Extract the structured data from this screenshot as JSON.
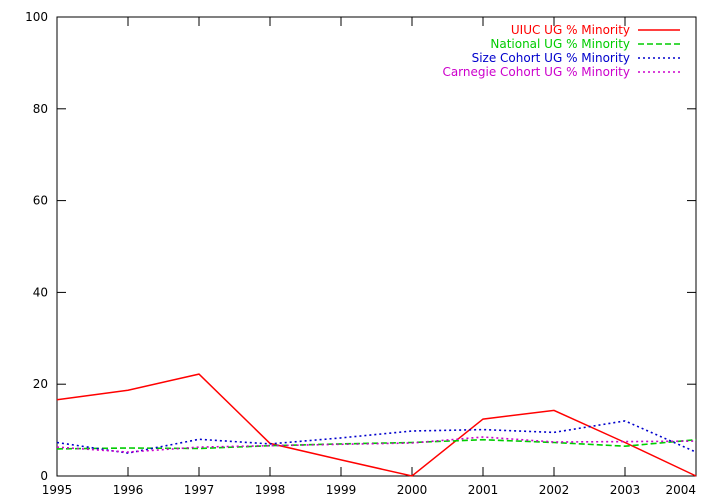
{
  "chart_data": {
    "type": "line",
    "title": "",
    "xlabel": "",
    "ylabel": "",
    "xlim": [
      1995,
      2004
    ],
    "ylim": [
      0,
      100
    ],
    "x_ticks": [
      1995,
      1996,
      1997,
      1998,
      1999,
      2000,
      2001,
      2002,
      2003,
      2004
    ],
    "y_ticks": [
      0,
      20,
      40,
      60,
      80,
      100
    ],
    "grid": false,
    "legend_position": "top-right",
    "x": [
      1995,
      1996,
      1997,
      1998,
      1999,
      2000,
      2001,
      2002,
      2003,
      2004
    ],
    "series": [
      {
        "name": "UIUC UG % Minority",
        "color": "#ff0000",
        "style": "solid",
        "values": [
          16.6,
          18.7,
          22.2,
          7.1,
          3.5,
          0.0,
          12.4,
          14.3,
          7.3,
          0.0
        ]
      },
      {
        "name": "National UG % Minority",
        "color": "#00cc00",
        "style": "dashed",
        "values": [
          5.9,
          6.1,
          6.0,
          6.6,
          7.0,
          7.3,
          7.9,
          7.3,
          6.5,
          7.9
        ]
      },
      {
        "name": "Size Cohort UG % Minority",
        "color": "#0000cc",
        "style": "dotted",
        "values": [
          7.3,
          5.0,
          8.0,
          7.0,
          8.3,
          9.8,
          10.1,
          9.5,
          12.0,
          5.2
        ]
      },
      {
        "name": "Carnegie Cohort UG % Minority",
        "color": "#cc00cc",
        "style": "dotted",
        "values": [
          6.3,
          5.2,
          6.3,
          6.6,
          6.9,
          7.2,
          8.5,
          7.4,
          7.5,
          7.6
        ]
      }
    ]
  }
}
